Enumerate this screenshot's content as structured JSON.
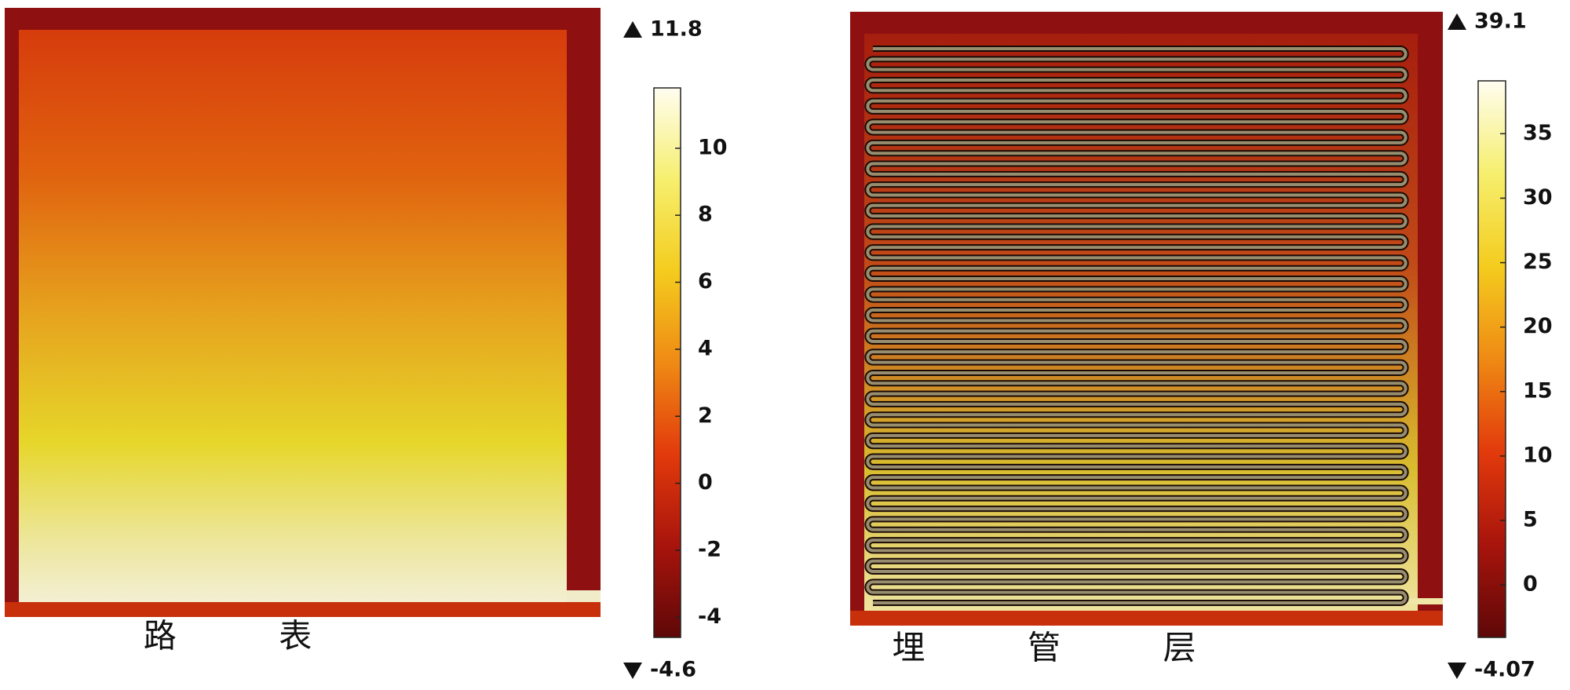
{
  "chart_data": [
    {
      "type": "heatmap",
      "caption": "路 表",
      "max": 11.8,
      "min": -4.6,
      "clim": [
        -4.6,
        11.8
      ],
      "ticks": [
        -4,
        -2,
        0,
        2,
        4,
        6,
        8,
        10
      ],
      "colormap": [
        "#5e0808",
        "#a8140c",
        "#e23a0c",
        "#ef8a14",
        "#f4cc1e",
        "#f6ef6e",
        "#fffdf0"
      ]
    },
    {
      "type": "heatmap",
      "caption": "埋 管 层",
      "max": 39.1,
      "min": -4.07,
      "clim": [
        -4.07,
        39.1
      ],
      "ticks": [
        0,
        5,
        10,
        15,
        20,
        25,
        30,
        35
      ],
      "colormap": [
        "#5e0808",
        "#a8140c",
        "#e23a0c",
        "#ef8a14",
        "#f4cc1e",
        "#f6ef6e",
        "#fffdf0"
      ]
    }
  ]
}
